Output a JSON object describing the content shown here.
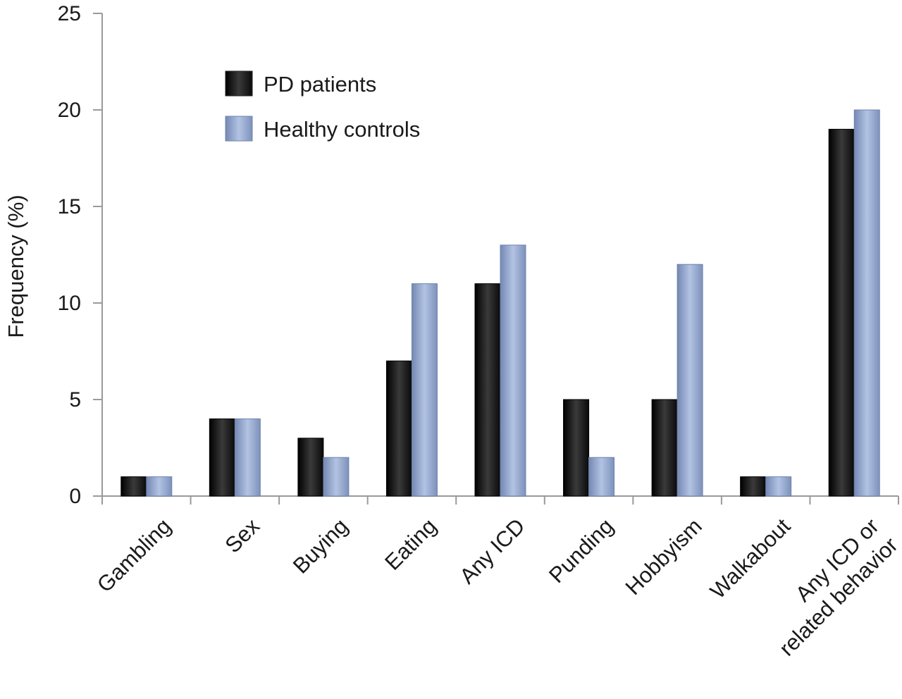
{
  "chart_data": {
    "type": "bar",
    "title": "",
    "xlabel": "",
    "ylabel": "Frequency (%)",
    "ylim": [
      0,
      25
    ],
    "yticks": [
      0,
      5,
      10,
      15,
      20,
      25
    ],
    "grid": false,
    "legend_position": "top-left",
    "categories": [
      [
        "Gambling"
      ],
      [
        "Sex"
      ],
      [
        "Buying"
      ],
      [
        "Eating"
      ],
      [
        "Any ICD"
      ],
      [
        "Punding"
      ],
      [
        "Hobbyism"
      ],
      [
        "Walkabout"
      ],
      [
        "Any ICD or",
        "related behavior"
      ]
    ],
    "series": [
      {
        "name": "PD patients",
        "color": "#141414",
        "values": [
          1,
          4,
          3,
          7,
          11,
          5,
          5,
          1,
          19
        ]
      },
      {
        "name": "Healthy controls",
        "color": "#8fa3c9",
        "values": [
          1,
          4,
          2,
          11,
          13,
          2,
          12,
          1,
          20
        ]
      }
    ]
  }
}
